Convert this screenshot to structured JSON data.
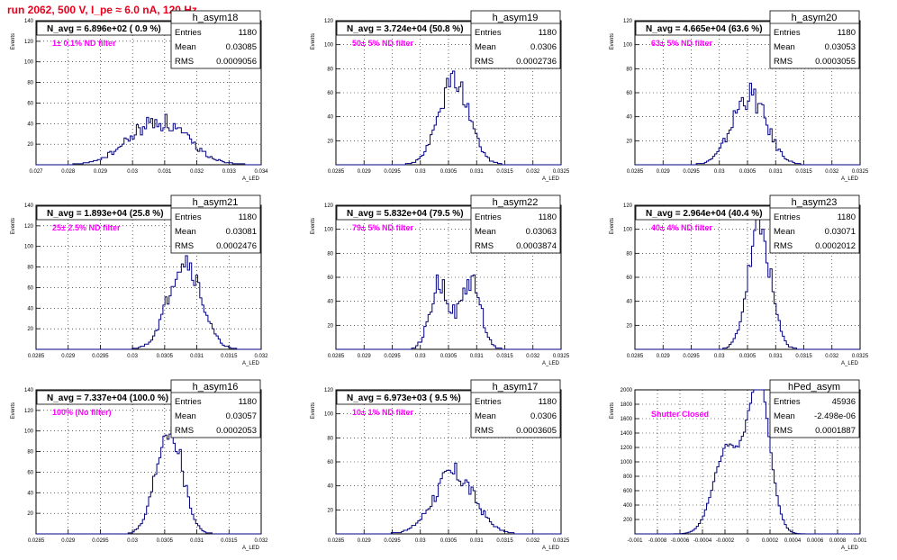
{
  "header": {
    "title": "run 2062,   500 V, I_pe ≈ 6.0 nA, 120 Hz"
  },
  "colors": {
    "hist": "#000080",
    "title_red": "#e8001c",
    "filter_magenta": "#ff00ff",
    "grid": "#000000"
  },
  "common": {
    "ylabel": "Events",
    "xlabel": "A_LED",
    "stat_labels": [
      "Entries",
      "Mean",
      "RMS"
    ]
  },
  "chart_data": [
    {
      "type": "histogram",
      "name": "h_asym18",
      "navg": "N_avg = 6.896e+02 ( 0.9 %)",
      "filter": "1± 0.1% ND filter",
      "stats": {
        "entries": "1180",
        "mean": "0.03085",
        "rms": "0.0009056"
      },
      "xlim": [
        0.027,
        0.034
      ],
      "ylim": [
        0,
        140
      ],
      "xticks": [
        "0.027",
        "0.028",
        "0.029",
        "0.03",
        "0.031",
        "0.032",
        "0.033",
        "0.034"
      ],
      "yticks": [
        "20",
        "40",
        "60",
        "80",
        "100",
        "120",
        "140"
      ],
      "center": 0.0308,
      "width": 0.0009,
      "peak": 42,
      "noise": 0.22,
      "seed": 18
    },
    {
      "type": "histogram",
      "name": "h_asym19",
      "navg": "N_avg = 3.724e+04 (50.8 %)",
      "filter": "50± 5% ND filter",
      "stats": {
        "entries": "1180",
        "mean": "0.0306",
        "rms": "0.0002736"
      },
      "xlim": [
        0.0285,
        0.0325
      ],
      "ylim": [
        0,
        120
      ],
      "xticks": [
        "0.0285",
        "0.029",
        "0.0295",
        "0.03",
        "0.0305",
        "0.031",
        "0.0315",
        "0.032",
        "0.0325"
      ],
      "yticks": [
        "20",
        "40",
        "60",
        "80",
        "100",
        "120"
      ],
      "center": 0.0306,
      "width": 0.00027,
      "peak": 70,
      "noise": 0.15,
      "seed": 19
    },
    {
      "type": "histogram",
      "name": "h_asym20",
      "navg": "N_avg = 4.665e+04 (63.6 %)",
      "filter": "63± 5% ND filter",
      "stats": {
        "entries": "1180",
        "mean": "0.03053",
        "rms": "0.0003055"
      },
      "xlim": [
        0.0285,
        0.0325
      ],
      "ylim": [
        0,
        120
      ],
      "xticks": [
        "0.0285",
        "0.029",
        "0.0295",
        "0.03",
        "0.0305",
        "0.031",
        "0.0315",
        "0.032",
        "0.0325"
      ],
      "yticks": [
        "20",
        "40",
        "60",
        "80",
        "100",
        "120"
      ],
      "center": 0.03053,
      "width": 0.0003,
      "peak": 58,
      "noise": 0.2,
      "seed": 20
    },
    {
      "type": "histogram",
      "name": "h_asym21",
      "navg": "N_avg = 1.893e+04 (25.8 %)",
      "filter": "25± 2.5% ND filter",
      "stats": {
        "entries": "1180",
        "mean": "0.03081",
        "rms": "0.0002476"
      },
      "xlim": [
        0.0285,
        0.032
      ],
      "ylim": [
        0,
        140
      ],
      "xticks": [
        "0.0285",
        "0.029",
        "0.0295",
        "0.03",
        "0.0305",
        "0.031",
        "0.0315",
        "0.032"
      ],
      "yticks": [
        "20",
        "40",
        "60",
        "80",
        "100",
        "120",
        "140"
      ],
      "center": 0.03081,
      "width": 0.00025,
      "peak": 88,
      "noise": 0.15,
      "seed": 21
    },
    {
      "type": "histogram",
      "name": "h_asym22",
      "navg": "N_avg = 5.832e+04 (79.5 %)",
      "filter": "79± 5% ND filter",
      "stats": {
        "entries": "1180",
        "mean": "0.03063",
        "rms": "0.0003874"
      },
      "xlim": [
        0.0285,
        0.0325
      ],
      "ylim": [
        0,
        120
      ],
      "xticks": [
        "0.0285",
        "0.029",
        "0.0295",
        "0.03",
        "0.0305",
        "0.031",
        "0.0315",
        "0.032",
        "0.0325"
      ],
      "yticks": [
        "20",
        "40",
        "60",
        "80",
        "100",
        "120"
      ],
      "center": 0.03063,
      "width": 0.0003,
      "peak": 58,
      "noise": 0.2,
      "seed": 22,
      "bimodal": [
        0.03035,
        0.0309
      ]
    },
    {
      "type": "histogram",
      "name": "h_asym23",
      "navg": "N_avg = 2.964e+04 (40.4 %)",
      "filter": "40± 4% ND filter",
      "stats": {
        "entries": "1180",
        "mean": "0.03071",
        "rms": "0.0002012"
      },
      "xlim": [
        0.0285,
        0.0325
      ],
      "ylim": [
        0,
        120
      ],
      "xticks": [
        "0.0285",
        "0.029",
        "0.0295",
        "0.03",
        "0.0305",
        "0.031",
        "0.0315",
        "0.032",
        "0.0325"
      ],
      "yticks": [
        "20",
        "40",
        "60",
        "80",
        "100",
        "120"
      ],
      "center": 0.03071,
      "width": 0.0002,
      "peak": 100,
      "noise": 0.15,
      "seed": 23
    },
    {
      "type": "histogram",
      "name": "h_asym16",
      "navg": "N_avg = 7.337e+04 (100.0 %)",
      "filter": "100% (No filter)",
      "stats": {
        "entries": "1180",
        "mean": "0.03057",
        "rms": "0.0002053"
      },
      "xlim": [
        0.0285,
        0.032
      ],
      "ylim": [
        0,
        140
      ],
      "xticks": [
        "0.0285",
        "0.029",
        "0.0295",
        "0.03",
        "0.0305",
        "0.031",
        "0.0315",
        "0.032"
      ],
      "yticks": [
        "20",
        "40",
        "60",
        "80",
        "100",
        "120",
        "140"
      ],
      "center": 0.03057,
      "width": 0.0002,
      "peak": 105,
      "noise": 0.15,
      "seed": 16
    },
    {
      "type": "histogram",
      "name": "h_asym17",
      "navg": "N_avg = 6.973e+03 ( 9.5 %)",
      "filter": "10± 1% ND filter",
      "stats": {
        "entries": "1180",
        "mean": "0.0306",
        "rms": "0.0003605"
      },
      "xlim": [
        0.0285,
        0.0325
      ],
      "ylim": [
        0,
        120
      ],
      "xticks": [
        "0.0285",
        "0.029",
        "0.0295",
        "0.03",
        "0.0305",
        "0.031",
        "0.0315",
        "0.032",
        "0.0325"
      ],
      "yticks": [
        "20",
        "40",
        "60",
        "80",
        "100",
        "120"
      ],
      "center": 0.0306,
      "width": 0.00036,
      "peak": 50,
      "noise": 0.2,
      "seed": 17
    },
    {
      "type": "histogram",
      "name": "hPed_asym",
      "navg": "",
      "filter": "Shutter Closed",
      "stats": {
        "entries": "45936",
        "mean": "-2.498e-06",
        "rms": "0.0001887"
      },
      "xlim": [
        -0.001,
        0.001
      ],
      "ylim": [
        0,
        2000
      ],
      "xticks": [
        "-0.001",
        "-0.0008",
        "-0.0006",
        "-0.0004",
        "-0.0002",
        "0",
        "0.0002",
        "0.0004",
        "0.0006",
        "0.0008",
        "0.001"
      ],
      "yticks": [
        "200",
        "400",
        "600",
        "800",
        "1000",
        "1200",
        "1400",
        "1600",
        "1800",
        "2000"
      ],
      "center": 0.0001,
      "width": 0.0001,
      "peak": 2050,
      "noise": 0.03,
      "seed": 99,
      "pedestal": true
    }
  ]
}
